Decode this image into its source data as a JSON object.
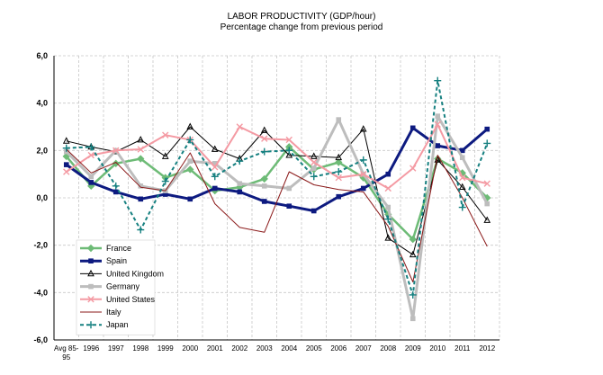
{
  "chart_data": {
    "type": "line",
    "title": "LABOR PRODUCTIVITY (GDP/hour)",
    "subtitle": "Percentage change from previous period",
    "categories": [
      "Avg 85-95",
      "1996",
      "1997",
      "1998",
      "1999",
      "2000",
      "2001",
      "2002",
      "2003",
      "2004",
      "2005",
      "2006",
      "2007",
      "2008",
      "2009",
      "2010",
      "2011",
      "2012"
    ],
    "category_lines": [
      [
        "Avg 85-",
        "95"
      ],
      [
        "1996"
      ],
      [
        "1997"
      ],
      [
        "1998"
      ],
      [
        "1999"
      ],
      [
        "2000"
      ],
      [
        "2001"
      ],
      [
        "2002"
      ],
      [
        "2003"
      ],
      [
        "2004"
      ],
      [
        "2005"
      ],
      [
        "2006"
      ],
      [
        "2007"
      ],
      [
        "2008"
      ],
      [
        "2009"
      ],
      [
        "2010"
      ],
      [
        "2011"
      ],
      [
        "2012"
      ]
    ],
    "ylim": [
      -6,
      6
    ],
    "yticks": [
      -6,
      -4,
      -2,
      0,
      2,
      4,
      6
    ],
    "ytick_labels": [
      "-6,0",
      "-4,0",
      "-2,0",
      "0,0",
      "2,0",
      "4,0",
      "6,0"
    ],
    "grid": true,
    "legend_position": "bottom-left",
    "series": [
      {
        "name": "France",
        "color": "#6dbb76",
        "marker": "diamond",
        "dash": "solid",
        "width": 2.5,
        "values": [
          1.75,
          0.5,
          1.45,
          1.65,
          0.85,
          1.2,
          0.3,
          0.45,
          0.8,
          2.15,
          1.2,
          1.5,
          0.85,
          -0.7,
          -1.75,
          1.65,
          1.05,
          0.0
        ]
      },
      {
        "name": "Spain",
        "color": "#0d1a80",
        "marker": "square",
        "dash": "solid",
        "width": 3,
        "values": [
          1.4,
          0.65,
          0.25,
          -0.05,
          0.15,
          -0.05,
          0.4,
          0.25,
          -0.15,
          -0.35,
          -0.55,
          0.05,
          0.4,
          1.0,
          2.95,
          2.2,
          2.0,
          2.9
        ]
      },
      {
        "name": "United Kingdom",
        "color": "#000000",
        "marker": "triangle",
        "dash": "solid",
        "width": 1,
        "values": [
          2.4,
          2.15,
          1.95,
          2.45,
          1.75,
          3.0,
          2.05,
          1.65,
          2.85,
          1.8,
          1.75,
          1.7,
          2.9,
          -1.7,
          -2.4,
          1.6,
          0.45,
          -0.95
        ]
      },
      {
        "name": "Germany",
        "color": "#bdbdbd",
        "marker": "square",
        "dash": "solid",
        "width": 3,
        "values": [
          1.95,
          0.9,
          2.0,
          0.5,
          0.3,
          1.55,
          1.45,
          0.6,
          0.5,
          0.4,
          1.25,
          3.3,
          1.0,
          -0.4,
          -5.1,
          3.45,
          1.7,
          -0.25
        ]
      },
      {
        "name": "United States",
        "color": "#f49aa3",
        "marker": "x",
        "dash": "solid",
        "width": 2,
        "values": [
          1.1,
          1.8,
          2.0,
          2.05,
          2.65,
          2.45,
          1.3,
          3.0,
          2.5,
          2.45,
          1.5,
          0.85,
          1.0,
          0.4,
          1.25,
          3.1,
          0.85,
          0.6
        ]
      },
      {
        "name": "Italy",
        "color": "#8b1a1a",
        "marker": "none",
        "dash": "solid",
        "width": 1,
        "values": [
          2.05,
          1.05,
          1.5,
          0.45,
          0.3,
          1.9,
          -0.25,
          -1.25,
          -1.45,
          1.1,
          0.55,
          0.35,
          0.25,
          -1.2,
          -3.55,
          1.8,
          0.0,
          -2.05
        ]
      },
      {
        "name": "Japan",
        "color": "#168080",
        "marker": "plus",
        "dash": "dashed",
        "width": 2,
        "values": [
          2.1,
          2.15,
          0.5,
          -1.35,
          0.7,
          2.45,
          0.9,
          1.55,
          1.95,
          2.0,
          0.9,
          1.1,
          1.6,
          -0.9,
          -4.1,
          4.95,
          -0.4,
          2.3
        ]
      }
    ]
  }
}
